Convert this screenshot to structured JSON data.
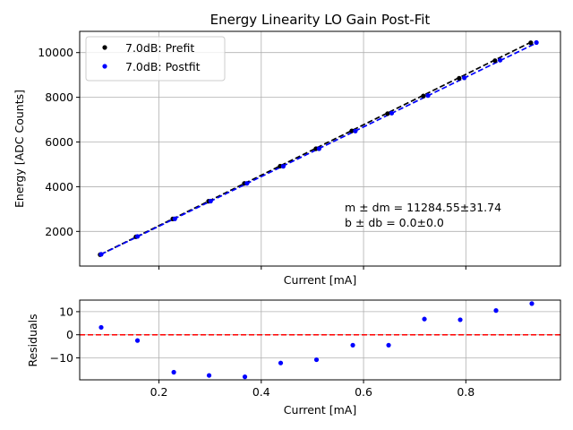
{
  "chart_data": [
    {
      "type": "scatter",
      "title": "Energy Linearity LO Gain Post-Fit",
      "xlabel": "Current [mA]",
      "ylabel": "Energy [ADC Counts]",
      "xlim": [
        0.045,
        0.985
      ],
      "ylim": [
        450,
        10950
      ],
      "x_ticks": [
        0.2,
        0.4,
        0.6,
        0.8
      ],
      "x_tick_labels_visible": false,
      "y_ticks": [
        2000,
        4000,
        6000,
        8000,
        10000
      ],
      "y_tick_labels": [
        "2000",
        "4000",
        "6000",
        "8000",
        "10000"
      ],
      "grid": true,
      "legend_position": "top-left",
      "series": [
        {
          "name": "7.0dB: Prefit",
          "color": "#000000",
          "points": [
            [
              0.085,
              960
            ],
            [
              0.155,
              1760
            ],
            [
              0.227,
              2560
            ],
            [
              0.297,
              3350
            ],
            [
              0.367,
              4150
            ],
            [
              0.437,
              4920
            ],
            [
              0.507,
              5700
            ],
            [
              0.577,
              6500
            ],
            [
              0.647,
              7270
            ],
            [
              0.717,
              8060
            ],
            [
              0.787,
              8850
            ],
            [
              0.857,
              9640
            ],
            [
              0.927,
              10440
            ]
          ],
          "fit_line": {
            "x": [
              0.085,
              0.927
            ],
            "y": [
              960,
              10460
            ]
          }
        },
        {
          "name": "7.0dB: Postfit",
          "color": "#0000ff",
          "points": [
            [
              0.087,
              975
            ],
            [
              0.158,
              1775
            ],
            [
              0.231,
              2565
            ],
            [
              0.301,
              3355
            ],
            [
              0.372,
              4150
            ],
            [
              0.443,
              4910
            ],
            [
              0.513,
              5700
            ],
            [
              0.584,
              6490
            ],
            [
              0.655,
              7290
            ],
            [
              0.726,
              8080
            ],
            [
              0.797,
              8870
            ],
            [
              0.867,
              9660
            ],
            [
              0.938,
              10450
            ]
          ],
          "fit_line": {
            "x": [
              0.087,
              0.938
            ],
            "y": [
              975,
              10430
            ]
          }
        }
      ],
      "annotation": {
        "line1": "m ± dm = 11284.55±31.74",
        "line2": "b ± db = 0.0±0.0"
      }
    },
    {
      "type": "scatter",
      "title": "",
      "xlabel": "Current [mA]",
      "ylabel": "Residuals",
      "xlim": [
        0.045,
        0.985
      ],
      "ylim": [
        -19.5,
        15
      ],
      "x_ticks": [
        0.2,
        0.4,
        0.6,
        0.8
      ],
      "x_tick_labels": [
        "0.2",
        "0.4",
        "0.6",
        "0.8"
      ],
      "y_ticks": [
        -10,
        0,
        10
      ],
      "y_tick_labels": [
        "−10",
        "0",
        "10"
      ],
      "grid": true,
      "reference_line": {
        "y": 0,
        "color": "#ff0000",
        "style": "dashed"
      },
      "series": [
        {
          "name": "Residuals",
          "color": "#0000ff",
          "points": [
            [
              0.087,
              3.2
            ],
            [
              0.158,
              -2.5
            ],
            [
              0.229,
              -16.2
            ],
            [
              0.298,
              -17.6
            ],
            [
              0.368,
              -18.2
            ],
            [
              0.438,
              -12.2
            ],
            [
              0.508,
              -10.8
            ],
            [
              0.579,
              -4.5
            ],
            [
              0.649,
              -4.5
            ],
            [
              0.719,
              6.8
            ],
            [
              0.789,
              6.5
            ],
            [
              0.859,
              10.5
            ],
            [
              0.929,
              13.5
            ]
          ]
        }
      ]
    }
  ]
}
